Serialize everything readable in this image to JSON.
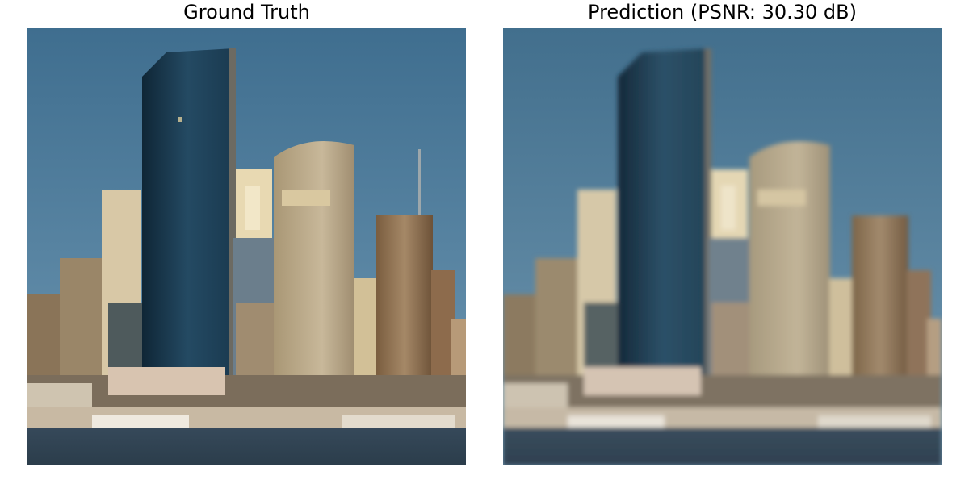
{
  "panels": [
    {
      "title": "Ground Truth",
      "image": "city-skyline-ground-truth"
    },
    {
      "title": "Prediction (PSNR: 30.30 dB)",
      "image": "city-skyline-prediction"
    }
  ],
  "colors": {
    "sky_top": "#3f6e8f",
    "sky_bottom": "#6a93b0",
    "tower_glass": "#1e3d52",
    "tower_glass_light": "#2f5570",
    "tan_building": "#b9a88a",
    "cream_building": "#e6d6b0",
    "brown_building": "#8f7556",
    "water": "#2f4454",
    "pier": "#d9c7b1"
  }
}
